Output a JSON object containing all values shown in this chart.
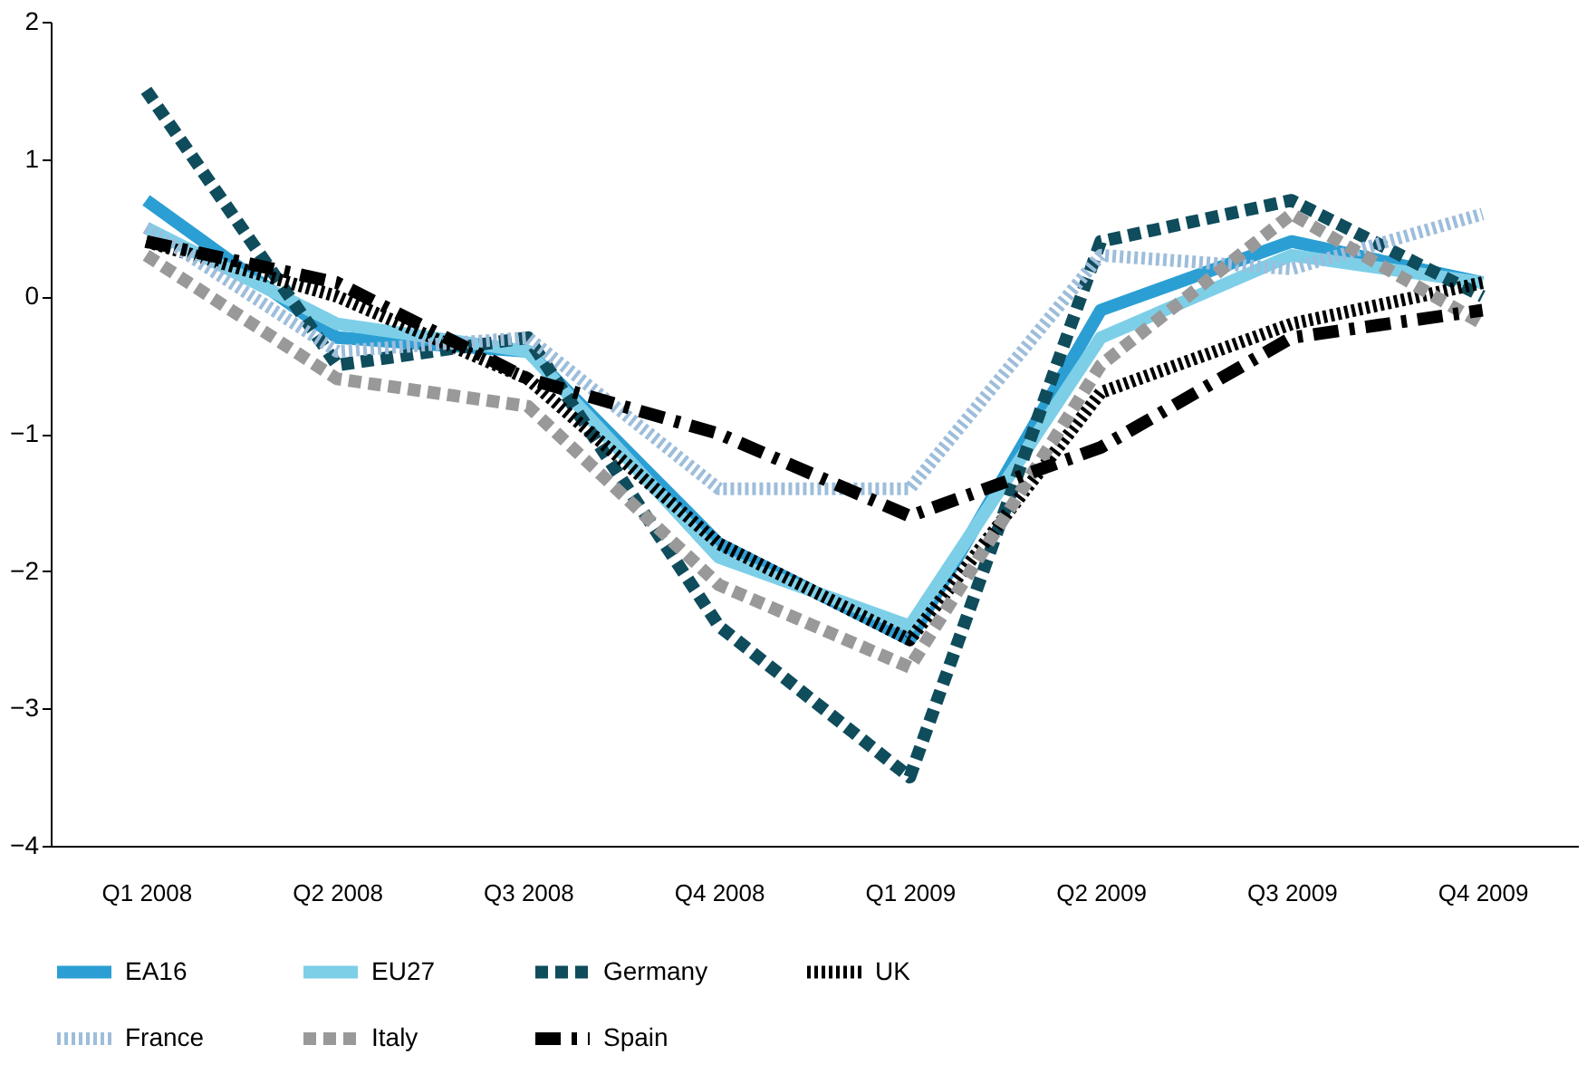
{
  "chart_data": {
    "type": "line",
    "categories": [
      "Q1 2008",
      "Q2 2008",
      "Q3 2008",
      "Q4 2008",
      "Q1 2009",
      "Q2 2009",
      "Q3 2009",
      "Q4 2009"
    ],
    "ylim": [
      -4,
      2
    ],
    "yticks": [
      -4,
      -3,
      -2,
      -1,
      0,
      1,
      2
    ],
    "grid": false,
    "legend": "bottom",
    "marker": "none",
    "series": [
      {
        "name": "EA16",
        "color": "#2b9fd4",
        "line_style": "solid",
        "values": [
          0.7,
          -0.3,
          -0.4,
          -1.8,
          -2.5,
          -0.1,
          0.4,
          0.1
        ]
      },
      {
        "name": "EU27",
        "color": "#7dcfe8",
        "line_style": "solid",
        "values": [
          0.5,
          -0.2,
          -0.4,
          -1.9,
          -2.4,
          -0.3,
          0.3,
          0.1
        ]
      },
      {
        "name": "Germany",
        "color": "#0f4c5c",
        "line_style": "dashed",
        "values": [
          1.5,
          -0.5,
          -0.3,
          -2.4,
          -3.5,
          0.4,
          0.7,
          0.0
        ]
      },
      {
        "name": "UK",
        "color": "#000000",
        "line_style": "dotted",
        "values": [
          0.4,
          0.0,
          -0.6,
          -1.8,
          -2.5,
          -0.7,
          -0.2,
          0.1
        ]
      },
      {
        "name": "France",
        "color": "#9dbddb",
        "line_style": "dotted",
        "values": [
          0.5,
          -0.4,
          -0.3,
          -1.4,
          -1.4,
          0.3,
          0.2,
          0.6
        ]
      },
      {
        "name": "Italy",
        "color": "#999999",
        "line_style": "dashed",
        "values": [
          0.3,
          -0.6,
          -0.8,
          -2.1,
          -2.7,
          -0.5,
          0.6,
          -0.2
        ]
      },
      {
        "name": "Spain",
        "color": "#000000",
        "line_style": "dashdot",
        "values": [
          0.4,
          0.1,
          -0.6,
          -1.0,
          -1.6,
          -1.1,
          -0.3,
          -0.1
        ]
      }
    ]
  }
}
